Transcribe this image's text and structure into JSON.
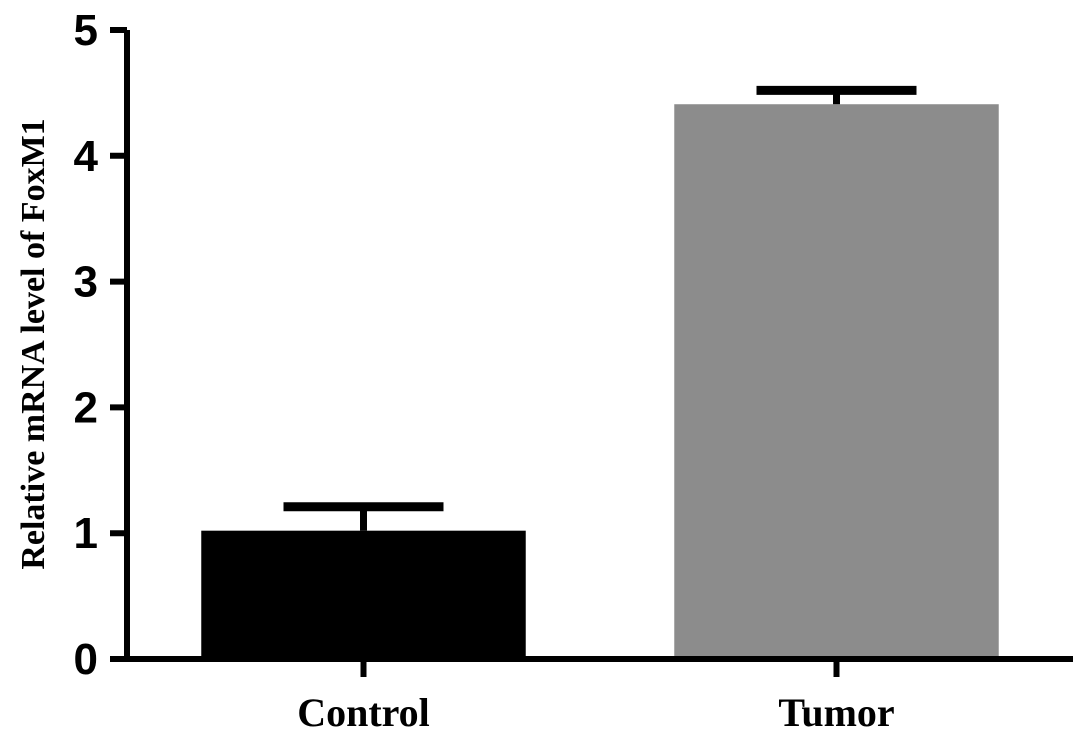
{
  "chart_data": {
    "type": "bar",
    "title": "",
    "xlabel": "",
    "ylabel": "Relative mRNA level of FoxM1",
    "categories": [
      "Control",
      "Tumor"
    ],
    "values": [
      1.02,
      4.41
    ],
    "errors": [
      0.19,
      0.11
    ],
    "ylim": [
      0,
      5
    ],
    "yticks": [
      "0",
      "1",
      "2",
      "3",
      "4",
      "5"
    ],
    "bar_colors": [
      "#000000",
      "#8c8c8c"
    ],
    "grid": false,
    "legend": "none"
  }
}
